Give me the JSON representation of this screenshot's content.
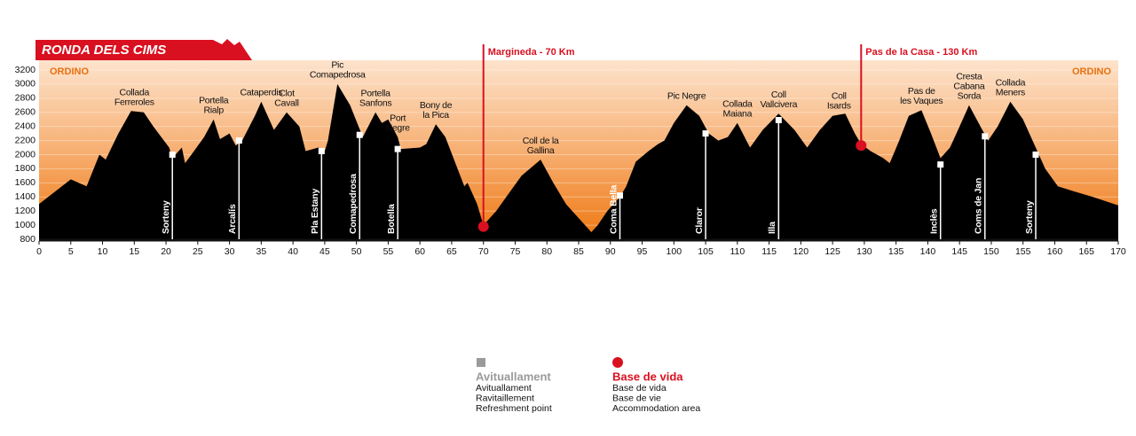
{
  "chart_data": {
    "type": "area",
    "title": "RONDA DELS CIMS",
    "color": "#000000",
    "x": [
      0,
      5,
      7.5,
      9.5,
      10.5,
      12.5,
      14.5,
      16.5,
      18,
      20.5,
      21,
      22.5,
      23,
      24,
      26,
      27.5,
      28.5,
      30,
      31,
      32,
      34,
      35,
      37,
      39,
      41,
      42,
      44,
      45,
      45.5,
      47,
      49,
      51,
      53,
      54,
      55,
      56.5,
      57,
      60,
      61,
      62.5,
      64,
      65.5,
      67,
      67.5,
      69,
      70,
      72,
      74,
      76,
      79,
      81,
      83,
      85,
      87,
      88,
      89.5,
      91.5,
      92.5,
      94,
      96,
      97.5,
      98.5,
      100,
      102,
      104,
      105.5,
      107,
      108.5,
      110,
      112,
      114,
      116.5,
      119,
      121,
      123,
      125,
      127,
      128.5,
      129.5,
      131,
      133,
      134,
      135.5,
      137,
      139,
      140.5,
      142,
      143.5,
      145,
      146.5,
      148,
      149.5,
      151,
      153,
      155,
      157,
      158.5,
      160.5,
      163,
      166,
      170
    ],
    "values": [
      1300,
      1650,
      1550,
      2000,
      1930,
      2300,
      2620,
      2600,
      2400,
      2100,
      1950,
      2100,
      1880,
      2000,
      2250,
      2500,
      2220,
      2300,
      2130,
      2200,
      2550,
      2750,
      2350,
      2600,
      2400,
      2050,
      2100,
      2050,
      2200,
      3000,
      2700,
      2250,
      2600,
      2450,
      2500,
      2250,
      2080,
      2100,
      2150,
      2430,
      2250,
      1900,
      1550,
      1600,
      1300,
      1000,
      1200,
      1450,
      1700,
      1930,
      1600,
      1300,
      1100,
      900,
      1000,
      1200,
      1400,
      1550,
      1900,
      2050,
      2150,
      2200,
      2450,
      2700,
      2550,
      2300,
      2200,
      2250,
      2450,
      2100,
      2350,
      2580,
      2350,
      2100,
      2350,
      2550,
      2580,
      2300,
      2150,
      2050,
      1950,
      1880,
      2200,
      2550,
      2630,
      2300,
      1950,
      2100,
      2400,
      2700,
      2450,
      2200,
      2400,
      2750,
      2500,
      2100,
      1800,
      1550,
      1480,
      1400,
      1280
    ],
    "xlim": [
      0,
      170
    ],
    "xticks": [
      0,
      5,
      10,
      15,
      20,
      25,
      30,
      35,
      40,
      45,
      50,
      55,
      60,
      65,
      70,
      75,
      80,
      85,
      90,
      95,
      100,
      105,
      110,
      115,
      120,
      125,
      130,
      135,
      140,
      145,
      150,
      155,
      160,
      165,
      170
    ],
    "ylim": [
      800,
      3200
    ],
    "yticks": [
      800,
      1000,
      1200,
      1400,
      1600,
      1800,
      2000,
      2200,
      2400,
      2600,
      2800,
      3000,
      3200
    ],
    "grid": true,
    "start_label": "ORDINO",
    "end_label": "ORDINO",
    "summits": [
      {
        "name": [
          "Collada",
          "Ferreroles"
        ],
        "x": 15
      },
      {
        "name": [
          "Portella",
          "Rialp"
        ],
        "x": 27.5
      },
      {
        "name": [
          "Cataperdis"
        ],
        "x": 35
      },
      {
        "name": [
          "Clot",
          "Cavall"
        ],
        "x": 39
      },
      {
        "name": [
          "Pic",
          "Comapedrosa"
        ],
        "x": 47
      },
      {
        "name": [
          "Portella",
          "Sanfons"
        ],
        "x": 53
      },
      {
        "name": [
          "Port",
          "Negre"
        ],
        "x": 56.5
      },
      {
        "name": [
          "Bony de",
          "la Pica"
        ],
        "x": 62.5
      },
      {
        "name": [
          "Coll de la",
          "Gallina"
        ],
        "x": 79
      },
      {
        "name": [
          "Pic Negre"
        ],
        "x": 102
      },
      {
        "name": [
          "Collada",
          "Maiana"
        ],
        "x": 110
      },
      {
        "name": [
          "Coll",
          "Vallcivera"
        ],
        "x": 116.5
      },
      {
        "name": [
          "Coll",
          "Isards"
        ],
        "x": 126
      },
      {
        "name": [
          "Pas de",
          "les Vaques"
        ],
        "x": 139
      },
      {
        "name": [
          "Cresta",
          "Cabana",
          "Sorda"
        ],
        "x": 146.5
      },
      {
        "name": [
          "Collada",
          "Meners"
        ],
        "x": 153
      }
    ],
    "aid_stations": {
      "color": "#ffffff",
      "labels": [
        "Sorteny",
        "Arcalís",
        "Pla Estany",
        "Comapedrosa",
        "Botella",
        "Coma Bella",
        "Claror",
        "Illa",
        "Inclès",
        "Coms de Jan",
        "Sorteny"
      ],
      "x": [
        21,
        31.5,
        44.5,
        50.5,
        56.5,
        91.5,
        105,
        116.5,
        142,
        149,
        157
      ],
      "values": [
        2000,
        2200,
        2050,
        2280,
        2080,
        1420,
        2300,
        2490,
        1860,
        2260,
        2000
      ]
    },
    "life_bases": {
      "color": "#d9101f",
      "labels": [
        "Margineda - 70 Km",
        "Pas de la Casa - 130 Km"
      ],
      "x": [
        70,
        129.5
      ],
      "values": [
        980,
        2130
      ]
    },
    "legend": [
      {
        "title": "Avituallament",
        "lines": [
          "Avituallament",
          "Ravitaillement",
          "Refreshment point"
        ],
        "color": "#9a9a9a"
      },
      {
        "title": "Base de vida",
        "lines": [
          "Base de vida",
          "Base de vie",
          "Accommodation area"
        ],
        "color": "#d9101f"
      }
    ]
  }
}
